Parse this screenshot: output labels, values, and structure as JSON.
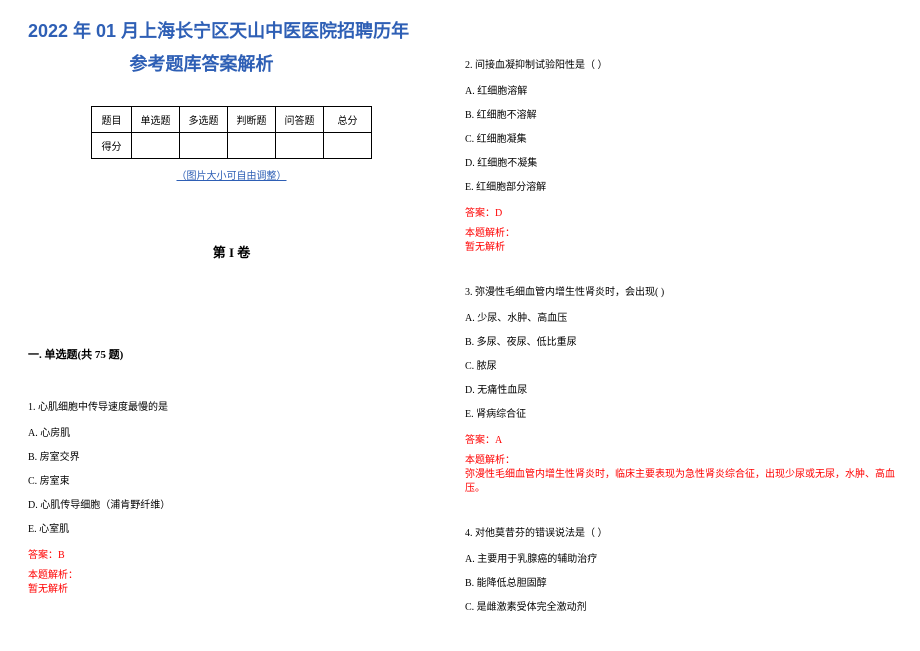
{
  "title": {
    "line1": "2022 年 01 月上海长宁区天山中医医院招聘历年",
    "line2": "参考题库答案解析",
    "color": "#2e5fb5"
  },
  "scoreTable": {
    "headers": [
      "题目",
      "单选题",
      "多选题",
      "判断题",
      "问答题",
      "总分"
    ],
    "rowLabel": "得分",
    "note": "（图片大小可自由调整）",
    "noteColor": "#2e5fb5"
  },
  "volumeTitle": "第 I 卷",
  "sectionTitle": "一. 单选题(共 75 题)",
  "questions": {
    "q1": {
      "text": "1. 心肌细胞中传导速度最慢的是",
      "options": [
        "A. 心房肌",
        "B. 房室交界",
        "C. 房室束",
        "D. 心肌传导细胞（浦肯野纤维）",
        "E. 心室肌"
      ],
      "answer": "答案：B",
      "analysisLabel": "本题解析：",
      "analysisContent": "暂无解析"
    },
    "q2": {
      "text": "2. 间接血凝抑制试验阳性是（    ）",
      "options": [
        "A. 红细胞溶解",
        "B. 红细胞不溶解",
        "C. 红细胞凝集",
        "D. 红细胞不凝集",
        "E. 红细胞部分溶解"
      ],
      "answer": "答案：D",
      "analysisLabel": "本题解析：",
      "analysisContent": "暂无解析"
    },
    "q3": {
      "text": "3. 弥漫性毛细血管内增生性肾炎时，会出现(  )",
      "options": [
        "A. 少尿、水肿、高血压",
        "B. 多尿、夜尿、低比重尿",
        "C. 脓尿",
        "D. 无痛性血尿",
        "E. 肾病综合征"
      ],
      "answer": "答案：A",
      "analysisLabel": "本题解析：",
      "analysisContent": "弥漫性毛细血管内增生性肾炎时，临床主要表现为急性肾炎综合征，出现少尿或无尿，水肿、高血压。"
    },
    "q4": {
      "text": "4. 对他莫昔芬的错误说法是（    ）",
      "options": [
        "A. 主要用于乳腺癌的辅助治疗",
        "B. 能降低总胆固醇",
        "C. 是雌激素受体完全激动剂"
      ]
    }
  },
  "colors": {
    "title": "#2e5fb5",
    "answer": "#ff0000",
    "text": "#000000"
  }
}
